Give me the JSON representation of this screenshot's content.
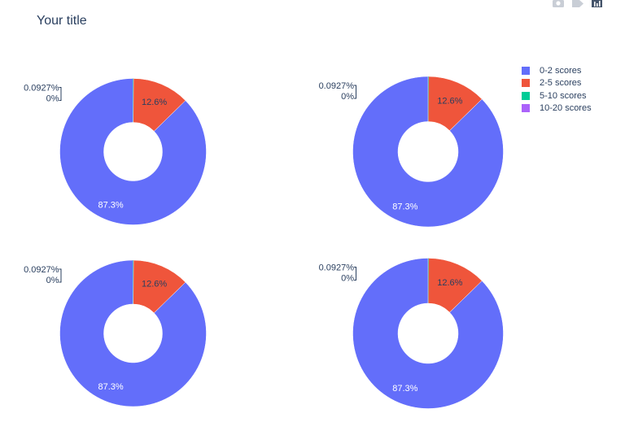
{
  "modebar": {
    "icons": [
      "camera-icon",
      "tag-icon",
      "bar-chart-icon"
    ]
  },
  "legend": [
    {
      "label": "0-2 scores",
      "color": "#636efa"
    },
    {
      "label": "2-5 scores",
      "color": "#EF553B"
    },
    {
      "label": "5-10 scores",
      "color": "#00cc96"
    },
    {
      "label": "10-20 scores",
      "color": "#ab63fa"
    }
  ],
  "chart_data": {
    "type": "pie",
    "title": "Your title",
    "hole": 0.4,
    "legend_position": "top-right",
    "subplots": [
      {
        "labels": [
          "0-2 scores",
          "2-5 scores",
          "5-10 scores",
          "10-20 scores"
        ],
        "values": [
          87.3,
          12.6,
          0.0927,
          0
        ],
        "text": [
          "87.3%",
          "12.6%",
          "0.0927%",
          "0%"
        ]
      },
      {
        "labels": [
          "0-2 scores",
          "2-5 scores",
          "5-10 scores",
          "10-20 scores"
        ],
        "values": [
          87.3,
          12.6,
          0.0927,
          0
        ],
        "text": [
          "87.3%",
          "12.6%",
          "0.0927%",
          "0%"
        ]
      },
      {
        "labels": [
          "0-2 scores",
          "2-5 scores",
          "5-10 scores",
          "10-20 scores"
        ],
        "values": [
          87.3,
          12.6,
          0.0927,
          0
        ],
        "text": [
          "87.3%",
          "12.6%",
          "0.0927%",
          "0%"
        ]
      },
      {
        "labels": [
          "0-2 scores",
          "2-5 scores",
          "5-10 scores",
          "10-20 scores"
        ],
        "values": [
          87.3,
          12.6,
          0.0927,
          0
        ],
        "text": [
          "87.3%",
          "12.6%",
          "0.0927%",
          "0%"
        ]
      }
    ]
  }
}
